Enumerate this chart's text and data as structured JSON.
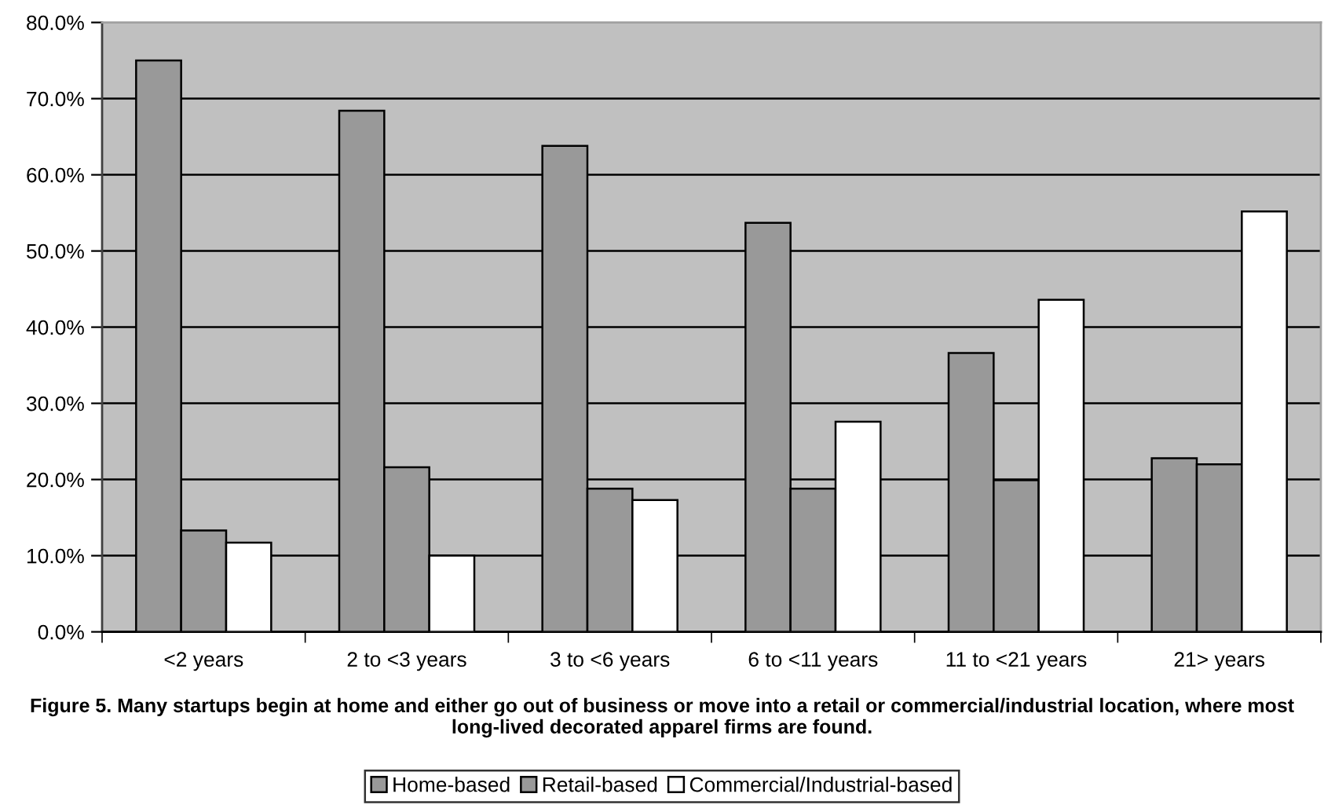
{
  "chart_data": {
    "type": "bar",
    "categories": [
      "<2 years",
      "2 to <3 years",
      "3 to <6 years",
      "6 to <11 years",
      "11 to <21 years",
      "21> years"
    ],
    "series": [
      {
        "name": "Home-based",
        "color": "#999999",
        "values": [
          75.0,
          68.4,
          63.8,
          53.7,
          36.6,
          22.8
        ]
      },
      {
        "name": "Retail-based",
        "color": "#999999",
        "values": [
          13.3,
          21.6,
          18.8,
          18.8,
          19.9,
          22.0
        ]
      },
      {
        "name": "Commercial/Industrial-based",
        "color": "#ffffff",
        "values": [
          11.7,
          10.0,
          17.3,
          27.6,
          43.6,
          55.2
        ]
      }
    ],
    "ylim": [
      0,
      80
    ],
    "yticks": [
      {
        "value": 0,
        "label": "0.0%"
      },
      {
        "value": 10,
        "label": "10.0%"
      },
      {
        "value": 20,
        "label": "20.0%"
      },
      {
        "value": 30,
        "label": "30.0%"
      },
      {
        "value": 40,
        "label": "40.0%"
      },
      {
        "value": 50,
        "label": "50.0%"
      },
      {
        "value": 60,
        "label": "60.0%"
      },
      {
        "value": 70,
        "label": "70.0%"
      },
      {
        "value": 80,
        "label": "80.0%"
      }
    ],
    "grid": "y",
    "legend": "bottom",
    "annotations": [
      "Figure 5. Many startups begin at home and either go out of business or move into a retail or commercial/industrial location, where most long-lived decorated apparel firms are found."
    ]
  }
}
